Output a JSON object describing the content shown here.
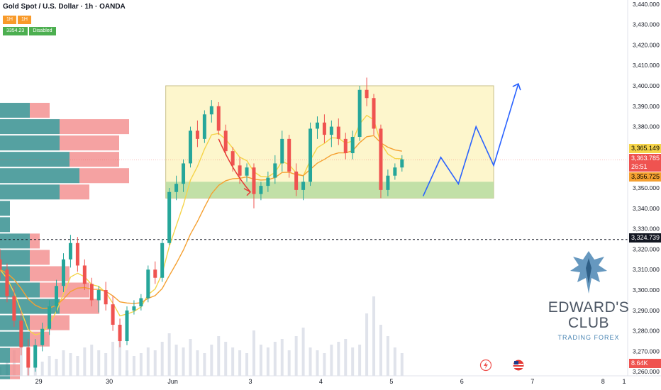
{
  "header": {
    "title": "Gold Spot / U.S. Dollar · 1h · OANDA",
    "ind_tf_a": "1H",
    "ind_tf_b": "1H",
    "ind_value": "3354.23",
    "ind_status": "Disabled"
  },
  "price_labels": {
    "p1": "3,365.149",
    "p2": "3,363.785",
    "countdown": "26:51",
    "p3": "3,356.725",
    "p4": "3,324.739",
    "volume": "8.64K"
  },
  "logo": {
    "title_line1": "EDWARD'S",
    "title_line2": "CLUB",
    "subtitle": "TRADING FOREX"
  },
  "colors": {
    "up": "#26a69a",
    "down": "#ef5350",
    "box_fill": "#fdf6cc",
    "support_fill": "#b7dca0",
    "ma_fast": "#f5d44a",
    "ma_slow": "#f5a030",
    "projection": "#2962ff",
    "annotation_arrow": "#e53935"
  },
  "chart_data": {
    "type": "candlestick",
    "symbol": "Gold Spot / U.S. Dollar",
    "timeframe": "1h",
    "source": "OANDA",
    "x_ticks": [
      "29",
      "30",
      "Jun",
      "3",
      "4",
      "5",
      "6",
      "7",
      "8",
      "1"
    ],
    "y_ticks": [
      "3,260.000",
      "3,270.000",
      "3,280.000",
      "3,290.000",
      "3,300.000",
      "3,310.000",
      "3,320.000",
      "3,330.000",
      "3,340.000",
      "3,350.000",
      "3,360.000",
      "3,370.000",
      "3,380.000",
      "3,390.000",
      "3,400.000",
      "3,410.000",
      "3,420.000",
      "3,430.000",
      "3,440.000"
    ],
    "ylim": [
      3258,
      3442
    ],
    "xlim": [
      0,
      8.9
    ],
    "range_box": {
      "top": 3400,
      "bottom": 3345,
      "x_start": 2.35,
      "x_end": 7.0
    },
    "support_zone": {
      "top": 3353,
      "bottom": 3345,
      "x_start": 2.35,
      "x_end": 7.0
    },
    "dotted_level": 3324.739,
    "current_price": 3363.785,
    "projection_path": [
      [
        6.0,
        3346
      ],
      [
        6.25,
        3365
      ],
      [
        6.5,
        3352
      ],
      [
        6.75,
        3380
      ],
      [
        7.0,
        3361
      ],
      [
        7.35,
        3401
      ]
    ],
    "annotation_arrow_path": [
      [
        3.1,
        3374
      ],
      [
        3.3,
        3358
      ],
      [
        3.55,
        3348
      ]
    ],
    "candles": [
      {
        "x": 0.0,
        "o": 3315,
        "h": 3320,
        "l": 3305,
        "c": 3310
      },
      {
        "x": 0.1,
        "o": 3310,
        "h": 3313,
        "l": 3294,
        "c": 3297
      },
      {
        "x": 0.2,
        "o": 3297,
        "h": 3302,
        "l": 3282,
        "c": 3285
      },
      {
        "x": 0.3,
        "o": 3285,
        "h": 3290,
        "l": 3268,
        "c": 3272
      },
      {
        "x": 0.4,
        "o": 3272,
        "h": 3276,
        "l": 3258,
        "c": 3262
      },
      {
        "x": 0.5,
        "o": 3262,
        "h": 3276,
        "l": 3260,
        "c": 3273
      },
      {
        "x": 0.6,
        "o": 3273,
        "h": 3284,
        "l": 3270,
        "c": 3281
      },
      {
        "x": 0.7,
        "o": 3281,
        "h": 3295,
        "l": 3278,
        "c": 3292
      },
      {
        "x": 0.8,
        "o": 3292,
        "h": 3305,
        "l": 3289,
        "c": 3302
      },
      {
        "x": 0.9,
        "o": 3302,
        "h": 3318,
        "l": 3299,
        "c": 3315
      },
      {
        "x": 1.0,
        "o": 3315,
        "h": 3327,
        "l": 3311,
        "c": 3323
      },
      {
        "x": 1.1,
        "o": 3323,
        "h": 3326,
        "l": 3309,
        "c": 3312
      },
      {
        "x": 1.2,
        "o": 3312,
        "h": 3315,
        "l": 3300,
        "c": 3303
      },
      {
        "x": 1.3,
        "o": 3303,
        "h": 3306,
        "l": 3292,
        "c": 3295
      },
      {
        "x": 1.4,
        "o": 3295,
        "h": 3302,
        "l": 3289,
        "c": 3300
      },
      {
        "x": 1.5,
        "o": 3300,
        "h": 3304,
        "l": 3290,
        "c": 3293
      },
      {
        "x": 1.6,
        "o": 3293,
        "h": 3297,
        "l": 3280,
        "c": 3283
      },
      {
        "x": 1.7,
        "o": 3283,
        "h": 3286,
        "l": 3272,
        "c": 3275
      },
      {
        "x": 1.8,
        "o": 3275,
        "h": 3292,
        "l": 3273,
        "c": 3290
      },
      {
        "x": 1.9,
        "o": 3290,
        "h": 3295,
        "l": 3288,
        "c": 3292
      },
      {
        "x": 2.0,
        "o": 3292,
        "h": 3298,
        "l": 3290,
        "c": 3296
      },
      {
        "x": 2.1,
        "o": 3296,
        "h": 3312,
        "l": 3294,
        "c": 3310
      },
      {
        "x": 2.2,
        "o": 3310,
        "h": 3314,
        "l": 3303,
        "c": 3306
      },
      {
        "x": 2.3,
        "o": 3306,
        "h": 3325,
        "l": 3304,
        "c": 3323
      },
      {
        "x": 2.4,
        "o": 3323,
        "h": 3350,
        "l": 3322,
        "c": 3348
      },
      {
        "x": 2.5,
        "o": 3348,
        "h": 3356,
        "l": 3344,
        "c": 3352
      },
      {
        "x": 2.6,
        "o": 3352,
        "h": 3364,
        "l": 3348,
        "c": 3362
      },
      {
        "x": 2.7,
        "o": 3362,
        "h": 3380,
        "l": 3360,
        "c": 3378
      },
      {
        "x": 2.8,
        "o": 3378,
        "h": 3383,
        "l": 3370,
        "c": 3374
      },
      {
        "x": 2.9,
        "o": 3374,
        "h": 3388,
        "l": 3372,
        "c": 3386
      },
      {
        "x": 3.0,
        "o": 3386,
        "h": 3393,
        "l": 3382,
        "c": 3390
      },
      {
        "x": 3.1,
        "o": 3390,
        "h": 3392,
        "l": 3376,
        "c": 3378
      },
      {
        "x": 3.2,
        "o": 3378,
        "h": 3381,
        "l": 3366,
        "c": 3368
      },
      {
        "x": 3.3,
        "o": 3368,
        "h": 3370,
        "l": 3358,
        "c": 3361
      },
      {
        "x": 3.4,
        "o": 3361,
        "h": 3365,
        "l": 3352,
        "c": 3356
      },
      {
        "x": 3.5,
        "o": 3356,
        "h": 3362,
        "l": 3353,
        "c": 3360
      },
      {
        "x": 3.6,
        "o": 3360,
        "h": 3362,
        "l": 3340,
        "c": 3347
      },
      {
        "x": 3.7,
        "o": 3347,
        "h": 3353,
        "l": 3344,
        "c": 3351
      },
      {
        "x": 3.8,
        "o": 3351,
        "h": 3358,
        "l": 3348,
        "c": 3355
      },
      {
        "x": 3.9,
        "o": 3355,
        "h": 3366,
        "l": 3352,
        "c": 3362
      },
      {
        "x": 4.0,
        "o": 3362,
        "h": 3378,
        "l": 3358,
        "c": 3374
      },
      {
        "x": 4.1,
        "o": 3374,
        "h": 3376,
        "l": 3355,
        "c": 3358
      },
      {
        "x": 4.2,
        "o": 3358,
        "h": 3362,
        "l": 3346,
        "c": 3349
      },
      {
        "x": 4.3,
        "o": 3349,
        "h": 3356,
        "l": 3344,
        "c": 3353
      },
      {
        "x": 4.4,
        "o": 3353,
        "h": 3382,
        "l": 3351,
        "c": 3379
      },
      {
        "x": 4.5,
        "o": 3379,
        "h": 3385,
        "l": 3374,
        "c": 3382
      },
      {
        "x": 4.6,
        "o": 3382,
        "h": 3386,
        "l": 3372,
        "c": 3376
      },
      {
        "x": 4.7,
        "o": 3376,
        "h": 3383,
        "l": 3370,
        "c": 3380
      },
      {
        "x": 4.8,
        "o": 3380,
        "h": 3384,
        "l": 3371,
        "c": 3374
      },
      {
        "x": 4.9,
        "o": 3374,
        "h": 3377,
        "l": 3364,
        "c": 3367
      },
      {
        "x": 5.0,
        "o": 3367,
        "h": 3378,
        "l": 3364,
        "c": 3375
      },
      {
        "x": 5.1,
        "o": 3375,
        "h": 3400,
        "l": 3373,
        "c": 3398
      },
      {
        "x": 5.2,
        "o": 3398,
        "h": 3404,
        "l": 3390,
        "c": 3394
      },
      {
        "x": 5.3,
        "o": 3394,
        "h": 3396,
        "l": 3376,
        "c": 3379
      },
      {
        "x": 5.4,
        "o": 3379,
        "h": 3381,
        "l": 3345,
        "c": 3349
      },
      {
        "x": 5.5,
        "o": 3349,
        "h": 3359,
        "l": 3346,
        "c": 3356
      },
      {
        "x": 5.6,
        "o": 3356,
        "h": 3362,
        "l": 3354,
        "c": 3360
      },
      {
        "x": 5.7,
        "o": 3360,
        "h": 3366,
        "l": 3358,
        "c": 3364
      }
    ],
    "volume_bars": [
      3,
      5,
      9,
      12,
      8,
      6,
      5,
      7,
      6,
      9,
      8,
      7,
      10,
      11,
      9,
      8,
      12,
      14,
      9,
      7,
      8,
      10,
      9,
      12,
      15,
      11,
      10,
      13,
      9,
      8,
      11,
      14,
      12,
      10,
      9,
      8,
      16,
      11,
      10,
      12,
      13,
      9,
      14,
      17,
      10,
      9,
      8,
      11,
      12,
      13,
      10,
      11,
      22,
      28,
      18,
      14,
      10,
      8
    ]
  }
}
